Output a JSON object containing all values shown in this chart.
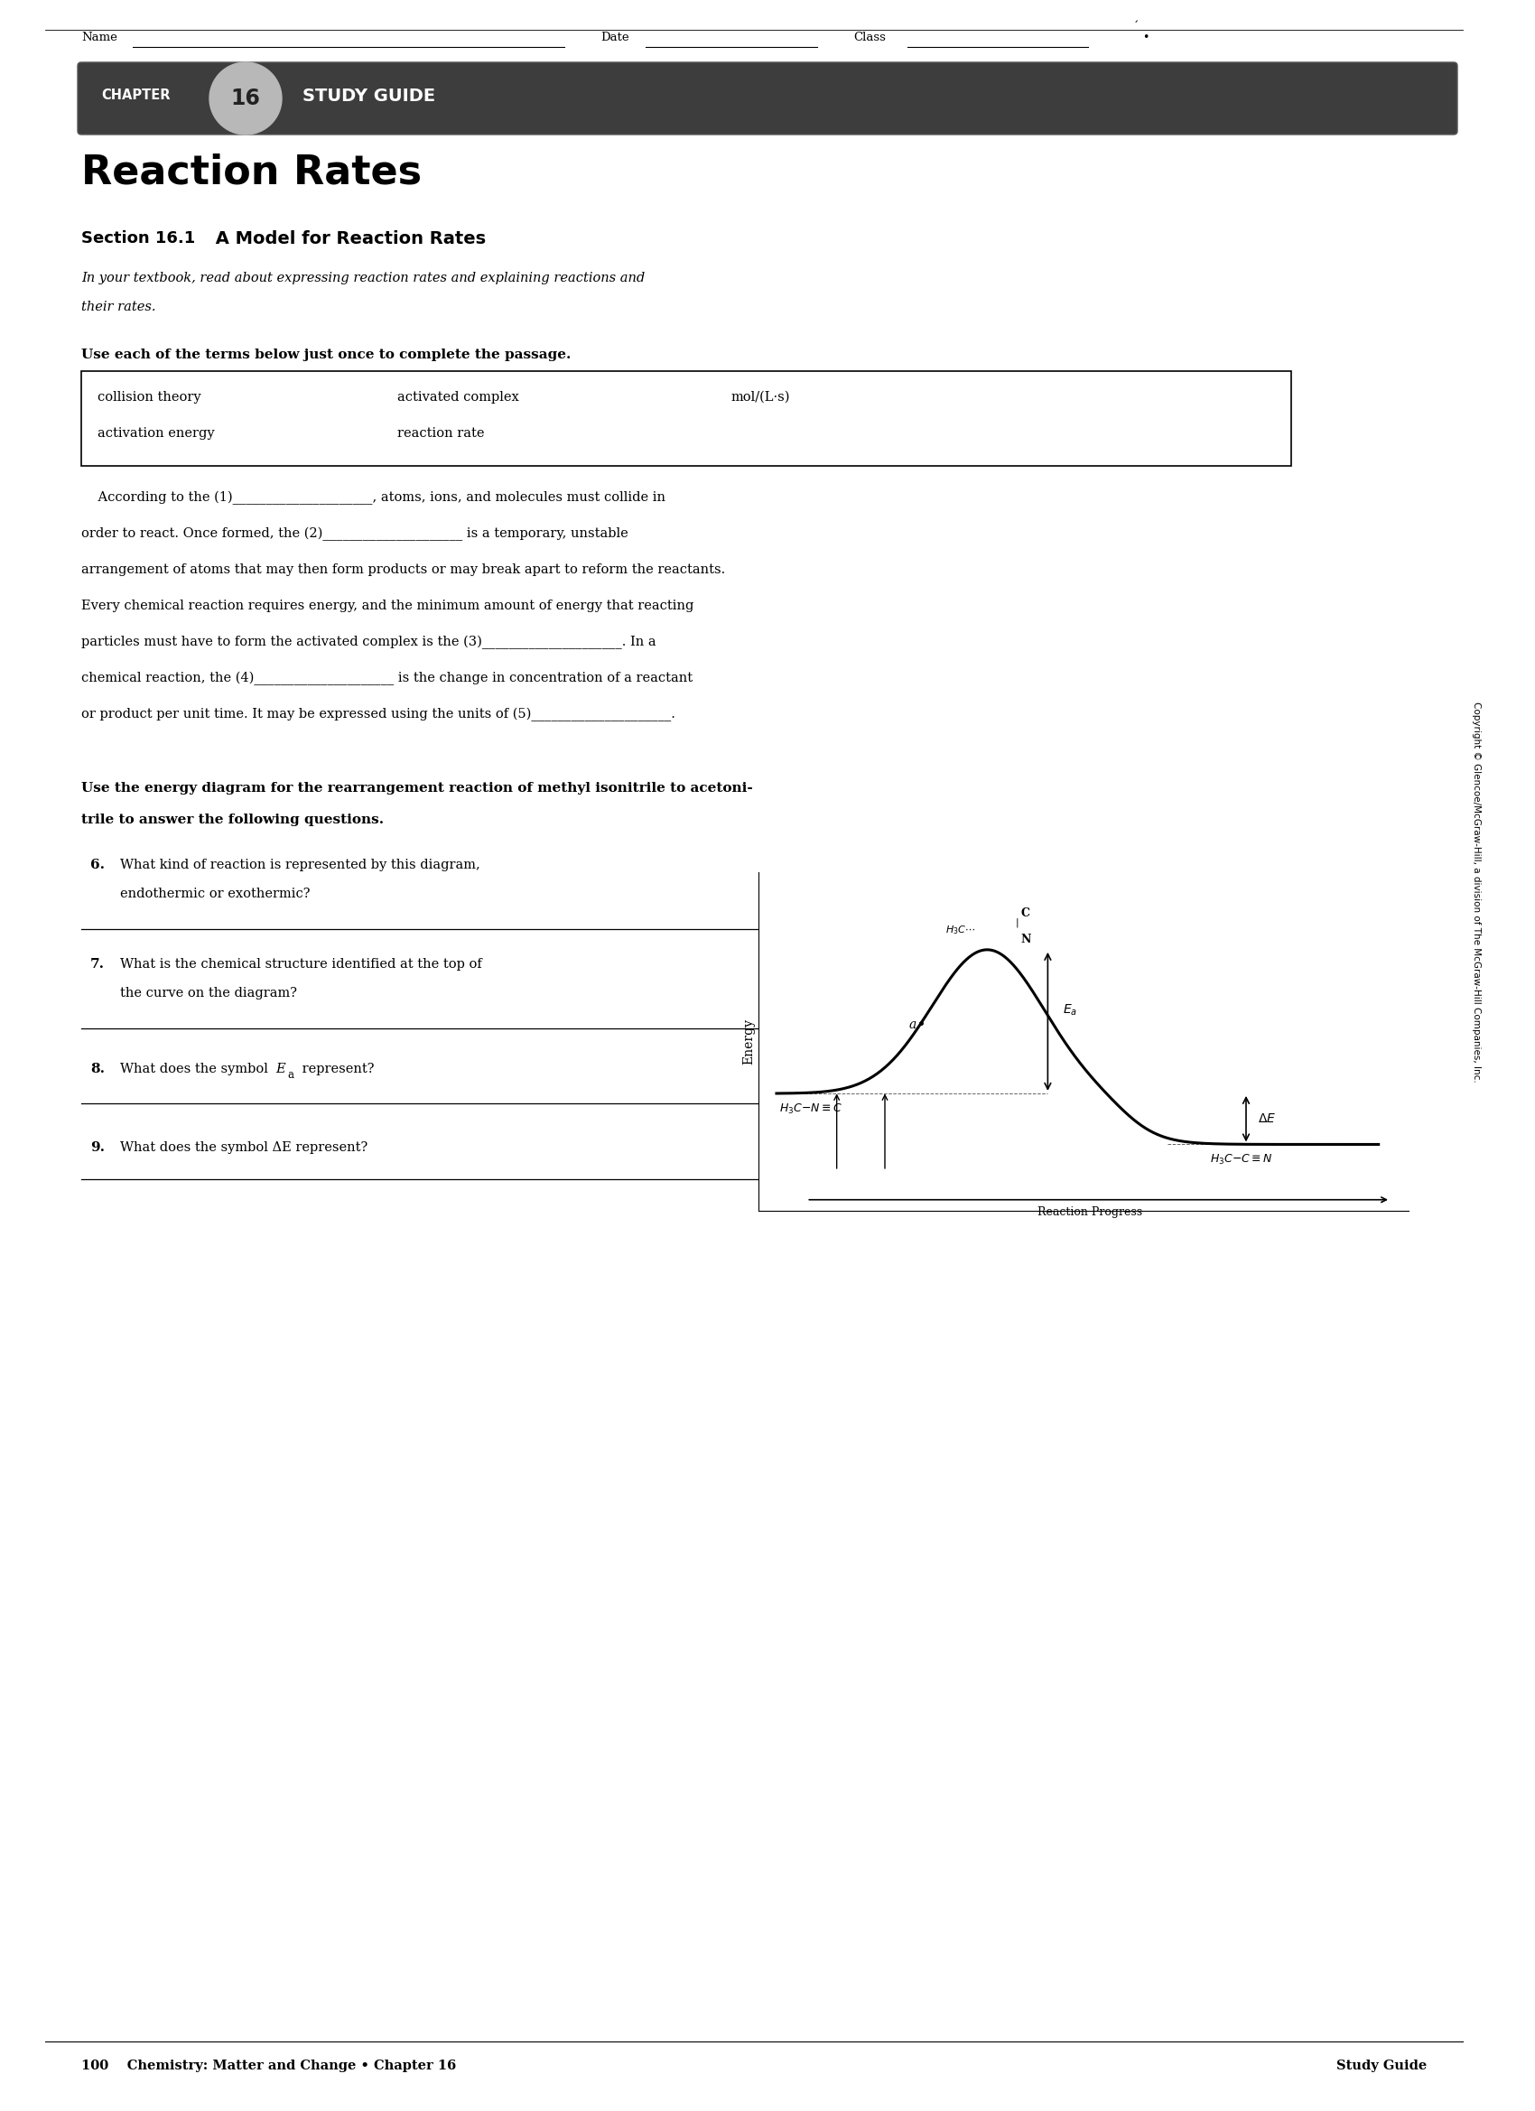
{
  "page_title": "Reaction Rates",
  "section_label": "Section 16.1",
  "section_title": " A Model for Reaction Rates",
  "section_italic_1": "In your textbook, read about expressing reaction rates and explaining reactions and",
  "section_italic_2": "their rates.",
  "terms_instruction": "Use each of the terms below just once to complete the passage.",
  "terms_row1": [
    "collision theory",
    "activated complex",
    "mol/(L·s)"
  ],
  "terms_row2": [
    "activation energy",
    "reaction rate"
  ],
  "passage_lines": [
    "    According to the (1)_____________________, atoms, ions, and molecules must collide in",
    "order to react. Once formed, the (2)_____________________ is a temporary, unstable",
    "arrangement of atoms that may then form products or may break apart to reform the reactants.",
    "Every chemical reaction requires energy, and the minimum amount of energy that reacting",
    "particles must have to form the activated complex is the (3)_____________________. In a",
    "chemical reaction, the (4)_____________________ is the change in concentration of a reactant",
    "or product per unit time. It may be expressed using the units of (5)_____________________."
  ],
  "diag_instr_1": "Use the energy diagram for the rearrangement reaction of methyl isonitrile to acetoni-",
  "diag_instr_2": "trile to answer the following questions.",
  "q6_num": "6.",
  "q6_text_1": "What kind of reaction is represented by this diagram,",
  "q6_text_2": "endothermic or exothermic?",
  "q7_num": "7.",
  "q7_text_1": "What is the chemical structure identified at the top of",
  "q7_text_2": "the curve on the diagram?",
  "q8_num": "8.",
  "q8_text": "What does the symbol ",
  "q8_Ea": "E",
  "q8_sub": "a",
  "q8_end": " represent?",
  "q9_num": "9.",
  "q9_text": "What does the symbol ΔE represent?",
  "footer_left": "100    Chemistry: Matter and Change • Chapter 16",
  "footer_right": "Study Guide",
  "name_label": "Name",
  "date_label": "Date",
  "class_label": "Class",
  "copyright_text": "Copyright © Glencoe/McGraw-Hill, a division of The McGraw-Hill Companies, Inc.",
  "bg_color": "#ffffff",
  "header_bg": "#404040"
}
